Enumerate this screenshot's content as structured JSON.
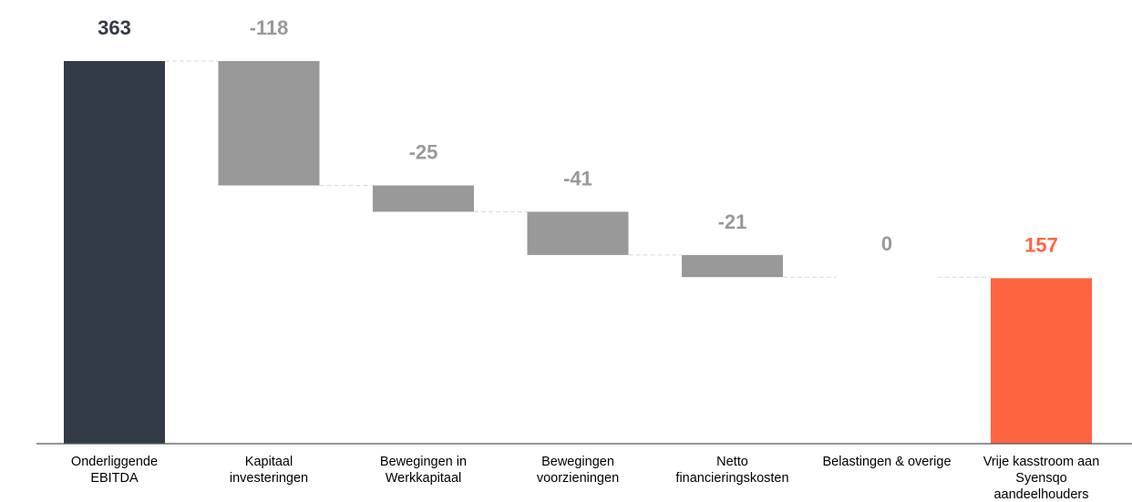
{
  "chart_data": {
    "type": "waterfall",
    "categories": [
      "Onderliggende EBITDA",
      "Kapitaal investeringen",
      "Bewegingen in Werkkapitaal",
      "Bewegingen voorzieningen",
      "Netto financieringskosten",
      "Belastingen & overige",
      "Vrije kasstroom aan Syensqo aandeelhouders"
    ],
    "category_lines": [
      [
        "Onderliggende",
        "EBITDA"
      ],
      [
        "Kapitaal",
        "investeringen"
      ],
      [
        "Bewegingen in",
        "Werkkapitaal"
      ],
      [
        "Bewegingen",
        "voorzieningen"
      ],
      [
        "Netto",
        "financieringskosten"
      ],
      [
        "Belastingen & overige"
      ],
      [
        "Vrije kasstroom aan",
        "Syensqo",
        "aandeelhouders"
      ]
    ],
    "values": [
      363,
      -118,
      -25,
      -41,
      -21,
      0,
      157
    ],
    "value_labels": [
      "363",
      "-118",
      "-25",
      "-41",
      "-21",
      "0",
      "157"
    ],
    "bar_kinds": [
      "total",
      "delta",
      "delta",
      "delta",
      "delta",
      "delta",
      "total"
    ],
    "ylim": [
      0,
      363
    ],
    "grid": false,
    "connectors": true
  },
  "colors": {
    "start_bar": "#333c46",
    "delta_bar": "#999999",
    "end_bar": "#ff6440",
    "start_label": "#333c46",
    "delta_label": "#999999",
    "end_label": "#ff6440",
    "connector": "#d9d9d9",
    "axis": "#555555",
    "category_text": "#000000"
  }
}
